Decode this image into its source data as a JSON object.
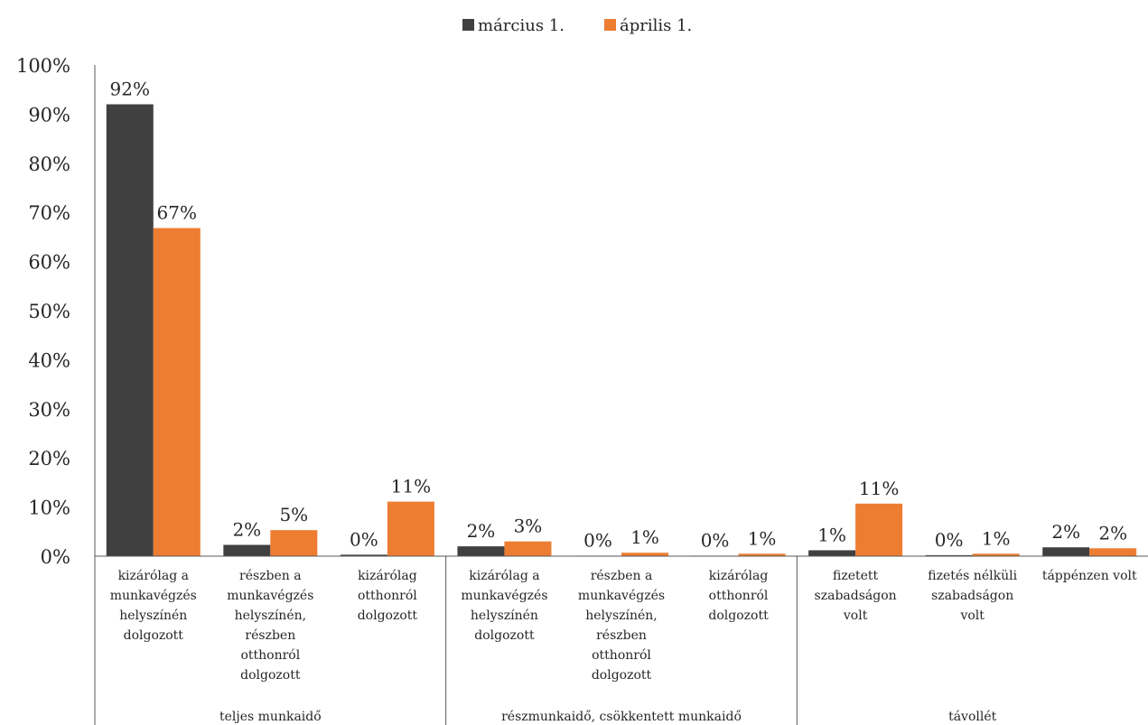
{
  "chart_data": {
    "type": "bar",
    "categories": [
      {
        "label": [
          "kizárólag a",
          "munkavégzés",
          "helyszínén",
          "dolgozott"
        ],
        "group": 0
      },
      {
        "label": [
          "részben a",
          "munkavégzés",
          "helyszínén,",
          "részben",
          "otthonról",
          "dolgozott"
        ],
        "group": 0
      },
      {
        "label": [
          "kizárólag",
          "otthonról",
          "dolgozott"
        ],
        "group": 0
      },
      {
        "label": [
          "kizárólag a",
          "munkavégzés",
          "helyszínén",
          "dolgozott"
        ],
        "group": 1
      },
      {
        "label": [
          "részben a",
          "munkavégzés",
          "helyszínén,",
          "részben",
          "otthonról",
          "dolgozott"
        ],
        "group": 1
      },
      {
        "label": [
          "kizárólag",
          "otthonról",
          "dolgozott"
        ],
        "group": 1
      },
      {
        "label": [
          "fizetett",
          "szabadságon",
          "volt"
        ],
        "group": 2
      },
      {
        "label": [
          "fizetés nélküli",
          "szabadságon",
          "volt"
        ],
        "group": 2
      },
      {
        "label": [
          "táppénzen volt"
        ],
        "group": 2
      }
    ],
    "groups": [
      "teljes munkaidő",
      "részmunkaidő, csökkentett munkaidő",
      "távollét"
    ],
    "series": [
      {
        "name": "március 1.",
        "color": "#404040",
        "values": [
          92,
          2.3,
          0.3,
          2,
          0.1,
          0.1,
          1.2,
          0.2,
          1.8
        ],
        "labels": [
          "92%",
          "2%",
          "0%",
          "2%",
          "0%",
          "0%",
          "1%",
          "0%",
          "2%"
        ]
      },
      {
        "name": "április 1.",
        "color": "#ED7D31",
        "values": [
          66.8,
          5.3,
          11.1,
          3,
          0.7,
          0.5,
          10.7,
          0.5,
          1.6
        ],
        "labels": [
          "67%",
          "5%",
          "11%",
          "3%",
          "1%",
          "1%",
          "11%",
          "1%",
          "2%"
        ]
      }
    ],
    "ylim": [
      0,
      100
    ],
    "yticks": [
      "0%",
      "10%",
      "20%",
      "30%",
      "40%",
      "50%",
      "60%",
      "70%",
      "80%",
      "90%",
      "100%"
    ],
    "legend_position": "top-center",
    "grid": false
  }
}
